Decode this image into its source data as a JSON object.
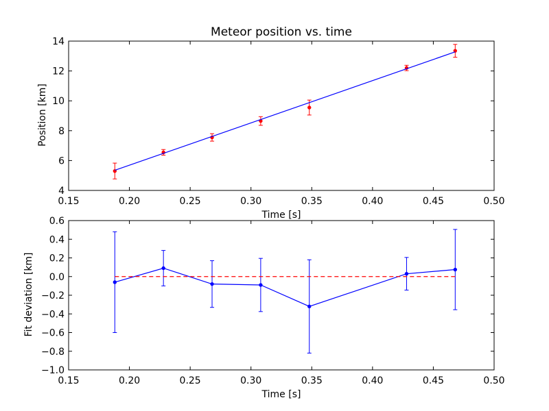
{
  "chart_data": [
    {
      "type": "scatter",
      "title": "Meteor position vs. time",
      "xlabel": "Time [s]",
      "ylabel": "Position [km]",
      "xlim": [
        0.15,
        0.5
      ],
      "ylim": [
        4,
        14
      ],
      "xticks": [
        "0.15",
        "0.20",
        "0.25",
        "0.30",
        "0.35",
        "0.40",
        "0.45",
        "0.50"
      ],
      "yticks": [
        "4",
        "6",
        "8",
        "10",
        "12",
        "14"
      ],
      "grid": false,
      "series": [
        {
          "kind": "errorbar-points",
          "color": "#ff0000",
          "x": [
            0.188,
            0.228,
            0.268,
            0.308,
            0.348,
            0.428,
            0.468
          ],
          "y": [
            5.3,
            6.55,
            7.55,
            8.65,
            9.55,
            12.2,
            13.35
          ],
          "yerr": [
            0.53,
            0.19,
            0.25,
            0.29,
            0.5,
            0.18,
            0.43
          ]
        },
        {
          "kind": "fit-line",
          "color": "#0000ff",
          "x": [
            0.188,
            0.468
          ],
          "y": [
            5.35,
            13.28
          ]
        }
      ]
    },
    {
      "type": "line",
      "title": "",
      "xlabel": "Time [s]",
      "ylabel": "Fit deviation [km]",
      "xlim": [
        0.15,
        0.5
      ],
      "ylim": [
        -1.0,
        0.6
      ],
      "xticks": [
        "0.15",
        "0.20",
        "0.25",
        "0.30",
        "0.35",
        "0.40",
        "0.45",
        "0.50"
      ],
      "yticks": [
        "−1.0",
        "−0.8",
        "−0.6",
        "−0.4",
        "−0.2",
        "0.0",
        "0.2",
        "0.4",
        "0.6"
      ],
      "grid": false,
      "series": [
        {
          "kind": "errorbar-line",
          "color": "#0000ff",
          "x": [
            0.188,
            0.228,
            0.268,
            0.308,
            0.348,
            0.428,
            0.468
          ],
          "y": [
            -0.06,
            0.09,
            -0.08,
            -0.09,
            -0.32,
            0.03,
            0.075
          ],
          "yerr": [
            0.54,
            0.19,
            0.25,
            0.285,
            0.5,
            0.175,
            0.43
          ]
        },
        {
          "kind": "reference-line",
          "color": "#ff0000",
          "dashed": true,
          "x": [
            0.188,
            0.468
          ],
          "y": [
            0.0,
            0.0
          ]
        }
      ]
    }
  ]
}
